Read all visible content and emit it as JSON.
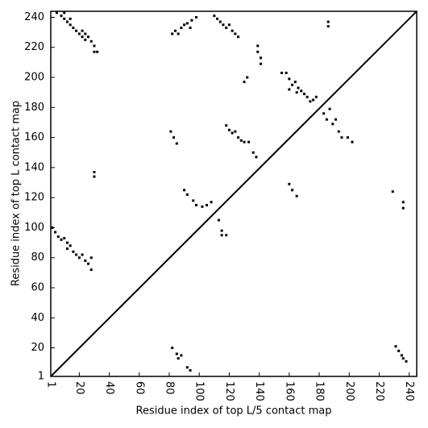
{
  "chart_data": {
    "type": "scatter",
    "xlabel": "Residue index of top L/5 contact map",
    "ylabel": "Residue index of top L contact map",
    "xlim": [
      1,
      245
    ],
    "ylim": [
      1,
      244
    ],
    "xticks": [
      1,
      20,
      40,
      60,
      80,
      100,
      120,
      140,
      160,
      180,
      200,
      220,
      240
    ],
    "yticks": [
      1,
      20,
      40,
      60,
      80,
      100,
      120,
      140,
      160,
      180,
      200,
      220,
      240
    ],
    "color": "#000000",
    "x": [
      5,
      8,
      10,
      10,
      12,
      14,
      14,
      16,
      18,
      20,
      22,
      24,
      26,
      28,
      30,
      30,
      32,
      24,
      22,
      2,
      4,
      6,
      8,
      10,
      12,
      12,
      14,
      16,
      18,
      20,
      22,
      24,
      26,
      28,
      28,
      30,
      30,
      82,
      84,
      86,
      88,
      90,
      92,
      94,
      95,
      98,
      110,
      112,
      114,
      116,
      118,
      120,
      122,
      124,
      126,
      139,
      139,
      141,
      141,
      130,
      132,
      155,
      158,
      160,
      162,
      164,
      166,
      168,
      170,
      172,
      174,
      176,
      178,
      160,
      165,
      186,
      186,
      183,
      185,
      187,
      189,
      191,
      193,
      195,
      199,
      202,
      81,
      83,
      85,
      118,
      120,
      122,
      124,
      126,
      128,
      130,
      133,
      136,
      138,
      90,
      92,
      96,
      98,
      102,
      105,
      108,
      113,
      115,
      115,
      118,
      160,
      162,
      165,
      229,
      236,
      236,
      82,
      85,
      86,
      88,
      92,
      94,
      231,
      233,
      235,
      236,
      238
    ],
    "values": [
      243,
      241,
      243,
      239,
      237,
      239,
      235,
      233,
      231,
      229,
      227,
      225,
      227,
      224,
      221,
      217,
      217,
      229,
      231,
      100,
      97,
      94,
      92,
      93,
      90,
      86,
      88,
      84,
      82,
      80,
      82,
      78,
      76,
      80,
      72,
      137,
      134,
      229,
      231,
      229,
      233,
      235,
      236,
      233,
      238,
      240,
      241,
      239,
      237,
      235,
      233,
      235,
      231,
      229,
      227,
      221,
      217,
      213,
      209,
      197,
      200,
      203,
      203,
      199,
      195,
      197,
      193,
      191,
      189,
      187,
      184,
      185,
      187,
      192,
      190,
      237,
      234,
      176,
      172,
      179,
      169,
      172,
      164,
      160,
      160,
      157,
      164,
      160,
      156,
      168,
      165,
      163,
      164,
      160,
      158,
      157,
      157,
      150,
      147,
      125,
      122,
      118,
      115,
      114,
      115,
      117,
      105,
      98,
      95,
      95,
      129,
      125,
      121,
      124,
      117,
      113,
      20,
      16,
      13,
      15,
      7,
      5,
      21,
      18,
      15,
      13,
      11
    ]
  }
}
